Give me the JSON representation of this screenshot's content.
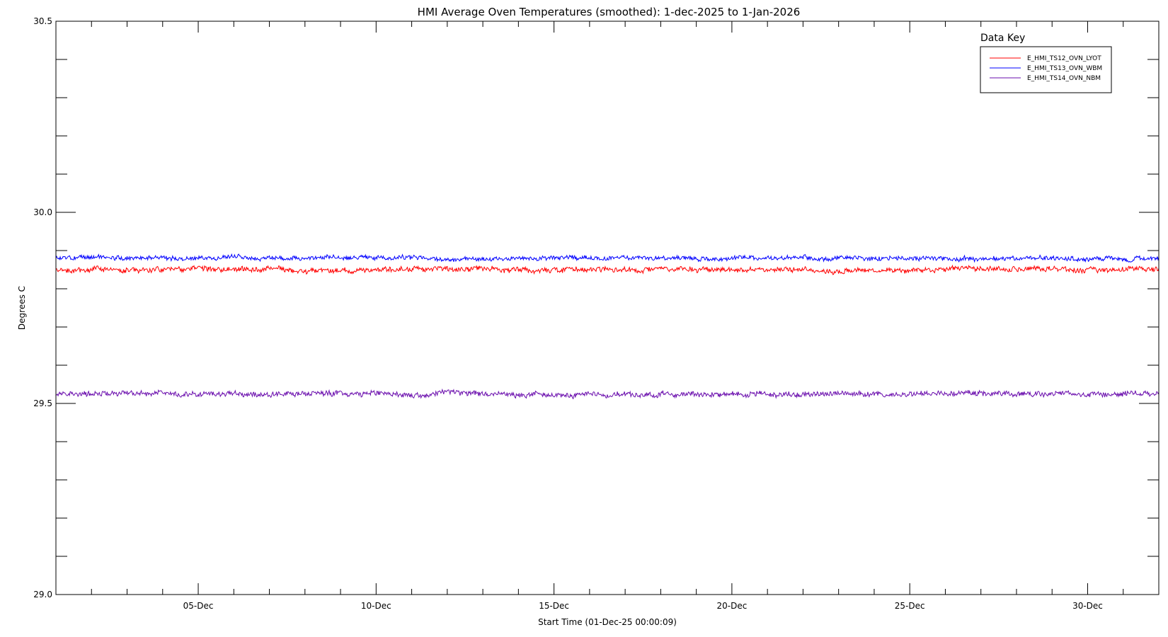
{
  "chart_data": {
    "type": "line",
    "title": "HMI Average Oven Temperatures (smoothed): 1-dec-2025 to 1-Jan-2026",
    "xlabel": "Start Time (01-Dec-25 00:00:09)",
    "ylabel": "Degrees C",
    "xlim": [
      "2025-12-01",
      "2026-01-01"
    ],
    "ylim": [
      29.0,
      30.5
    ],
    "y_ticks": [
      "29.0",
      "29.5",
      "30.0",
      "30.5"
    ],
    "y_minor_step": 0.1,
    "x_ticks": [
      {
        "date": "2025-12-05",
        "label": "05-Dec"
      },
      {
        "date": "2025-12-10",
        "label": "10-Dec"
      },
      {
        "date": "2025-12-15",
        "label": "15-Dec"
      },
      {
        "date": "2025-12-20",
        "label": "20-Dec"
      },
      {
        "date": "2025-12-25",
        "label": "25-Dec"
      },
      {
        "date": "2025-12-30",
        "label": "30-Dec"
      }
    ],
    "grid": false,
    "legend": {
      "title": "Data Key",
      "placement": "top-right"
    },
    "series": [
      {
        "name": "E_HMI_TS12_OVN_LYOT",
        "color": "#ff0000",
        "mean": 29.85,
        "noise": 0.006,
        "x": [
          "2025-12-01",
          "2026-01-01"
        ]
      },
      {
        "name": "E_HMI_TS13_OVN_WBM",
        "color": "#0000ff",
        "mean": 29.88,
        "noise": 0.005,
        "x": [
          "2025-12-01",
          "2026-01-01"
        ]
      },
      {
        "name": "E_HMI_TS14_OVN_NBM",
        "color": "#6a0dad",
        "mean": 29.525,
        "noise": 0.006,
        "x": [
          "2025-12-01",
          "2026-01-01"
        ]
      }
    ]
  }
}
